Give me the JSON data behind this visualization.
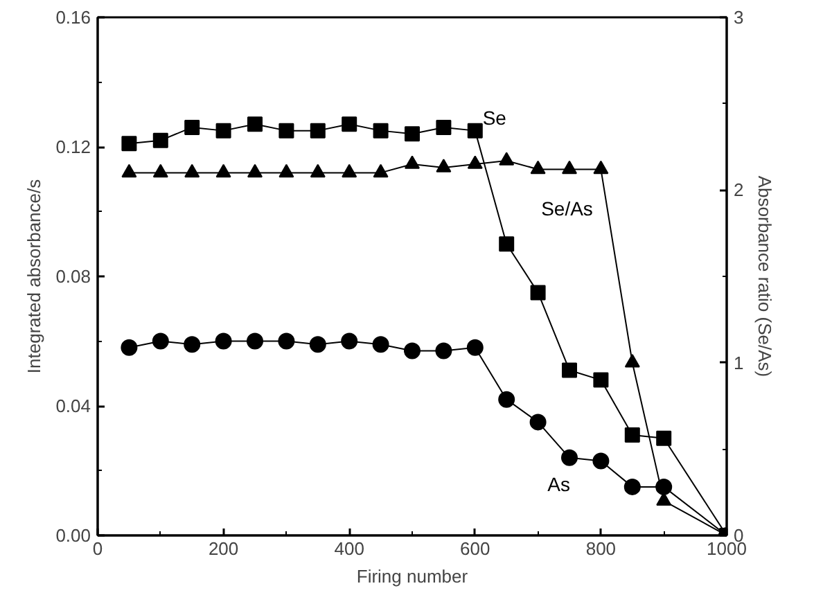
{
  "chart_data": {
    "type": "line",
    "xlabel": "Firing number",
    "ylabel": "Integrated absorbance/s",
    "y2label": "Absorbance ratio (Se/As)",
    "xlim": [
      0,
      1000
    ],
    "xticks": [
      0,
      200,
      400,
      600,
      800,
      1000
    ],
    "ylim": [
      0,
      0.16
    ],
    "yticks": [
      {
        "value": 0,
        "label": "0.00"
      },
      {
        "value": 0.04,
        "label": "0.04"
      },
      {
        "value": 0.08,
        "label": "0.08"
      },
      {
        "value": 0.12,
        "label": "0.12"
      },
      {
        "value": 0.16,
        "label": "0.16"
      }
    ],
    "y2lim": [
      0,
      3
    ],
    "y2ticks": [
      0,
      1,
      2,
      3
    ],
    "grid": false,
    "legend": false,
    "series": [
      {
        "name": "Se",
        "color": "#000000",
        "marker": "square",
        "x": [
          50,
          100,
          150,
          200,
          250,
          300,
          350,
          400,
          450,
          500,
          550,
          600,
          650,
          700,
          750,
          800,
          850,
          900,
          1000
        ],
        "values": [
          0.121,
          0.122,
          0.126,
          0.125,
          0.127,
          0.125,
          0.125,
          0.127,
          0.125,
          0.124,
          0.126,
          0.125,
          0.09,
          0.075,
          0.051,
          0.048,
          0.031,
          0.03,
          0
        ]
      },
      {
        "name": "Se/As",
        "color": "#000000",
        "marker": "triangle",
        "axis": "y2",
        "x": [
          50,
          100,
          150,
          200,
          250,
          300,
          350,
          400,
          450,
          500,
          550,
          600,
          650,
          700,
          750,
          800,
          850,
          900,
          1000
        ],
        "values": [
          2.1,
          2.1,
          2.1,
          2.1,
          2.1,
          2.1,
          2.1,
          2.1,
          2.1,
          2.15,
          2.13,
          2.15,
          2.17,
          2.12,
          2.12,
          2.12,
          1.0,
          0.2,
          0
        ]
      },
      {
        "name": "As",
        "color": "#000000",
        "marker": "circle",
        "x": [
          50,
          100,
          150,
          200,
          250,
          300,
          350,
          400,
          450,
          500,
          550,
          600,
          650,
          700,
          750,
          800,
          850,
          900,
          1000
        ],
        "values": [
          0.058,
          0.06,
          0.059,
          0.06,
          0.06,
          0.06,
          0.059,
          0.06,
          0.059,
          0.057,
          0.057,
          0.058,
          0.042,
          0.035,
          0.024,
          0.023,
          0.015,
          0.015,
          0
        ]
      }
    ]
  }
}
